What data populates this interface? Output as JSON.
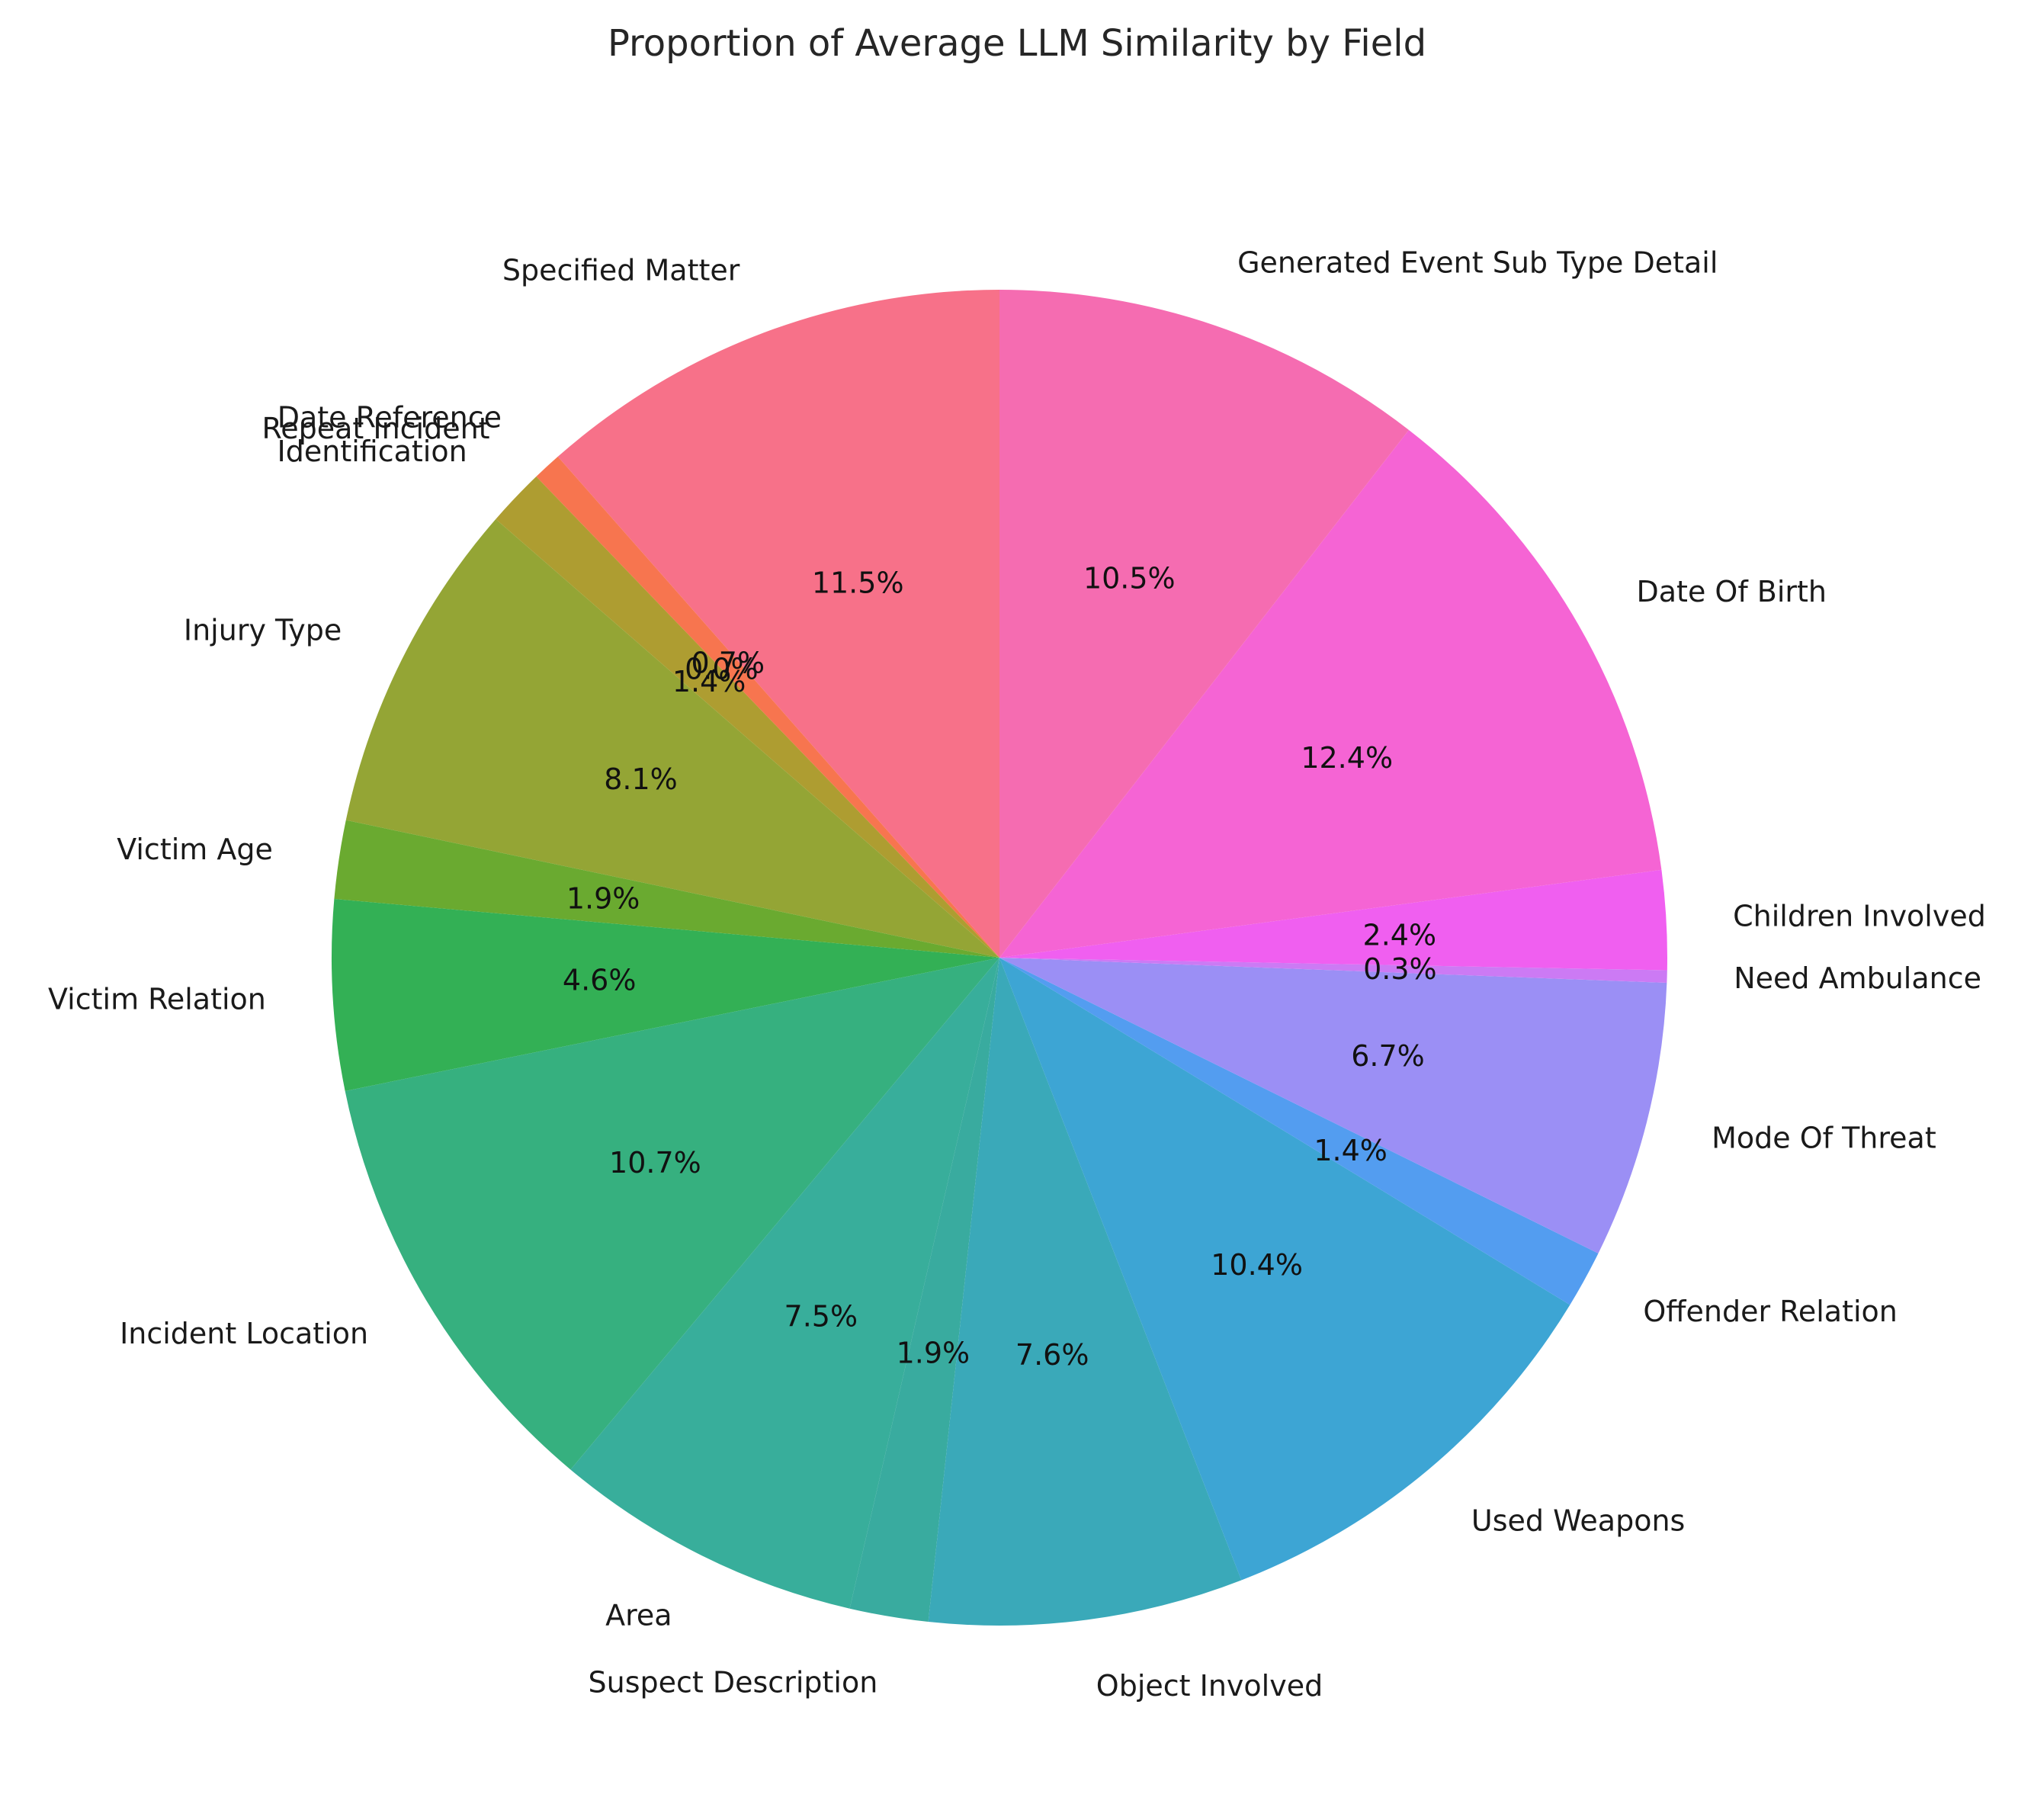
{
  "chart_data": {
    "type": "pie",
    "title": "Proportion of Average LLM Similarity by Field",
    "start_angle_deg": 90,
    "direction": "counterclockwise",
    "slices": [
      {
        "label": "Specified Matter",
        "value": 11.5,
        "pct_label": "11.5%",
        "color": "#f77189"
      },
      {
        "label": "Date Reference",
        "value": 0.7,
        "pct_label": "0.7%",
        "color": "#f7754f"
      },
      {
        "label": "Repeat Incident",
        "value": 0.0,
        "pct_label": "0.0%",
        "color": "#dc8932"
      },
      {
        "label": "Identification",
        "value": 1.4,
        "pct_label": "1.4%",
        "color": "#ae9d31"
      },
      {
        "label": "Injury Type",
        "value": 8.1,
        "pct_label": "8.1%",
        "color": "#94a535"
      },
      {
        "label": "Victim Age",
        "value": 1.9,
        "pct_label": "1.9%",
        "color": "#6aaa30"
      },
      {
        "label": "Victim Relation",
        "value": 4.6,
        "pct_label": "4.6%",
        "color": "#33b055"
      },
      {
        "label": "Incident Location",
        "value": 10.7,
        "pct_label": "10.7%",
        "color": "#36b07f"
      },
      {
        "label": "Area",
        "value": 7.5,
        "pct_label": "7.5%",
        "color": "#38ae9b"
      },
      {
        "label": "Suspect Description",
        "value": 1.9,
        "pct_label": "1.9%",
        "color": "#39ab9f"
      },
      {
        "label": "Object Involved",
        "value": 7.6,
        "pct_label": "7.6%",
        "color": "#3aa9b9"
      },
      {
        "label": "Used Weapons",
        "value": 10.4,
        "pct_label": "10.4%",
        "color": "#3da5d4"
      },
      {
        "label": "Offender Relation",
        "value": 1.4,
        "pct_label": "1.4%",
        "color": "#539df0"
      },
      {
        "label": "Mode Of Threat",
        "value": 6.7,
        "pct_label": "6.7%",
        "color": "#9b8ff5"
      },
      {
        "label": "Need Ambulance",
        "value": 0.3,
        "pct_label": "0.3%",
        "color": "#cc7af4"
      },
      {
        "label": "Children Involved",
        "value": 2.4,
        "pct_label": "2.4%",
        "color": "#f05ff0"
      },
      {
        "label": "Date Of Birth",
        "value": 12.4,
        "pct_label": "12.4%",
        "color": "#f564d4"
      },
      {
        "label": "Generated Event Sub Type Detail",
        "value": 10.5,
        "pct_label": "10.5%",
        "color": "#f56cb1"
      }
    ]
  }
}
